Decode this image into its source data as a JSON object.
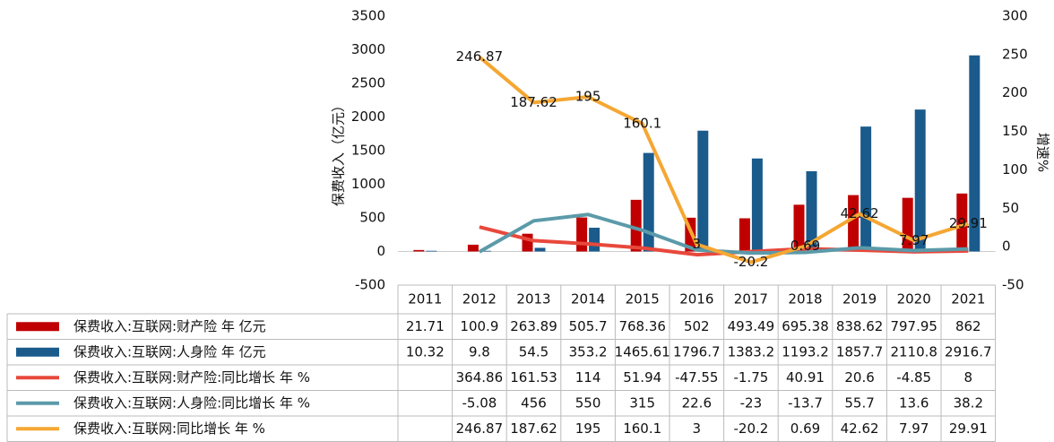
{
  "chart_data": {
    "type": "bar-line",
    "y_label": "保费收入（亿元）",
    "y2_label": "增速%",
    "categories": [
      "2011",
      "2012",
      "2013",
      "2014",
      "2015",
      "2016",
      "2017",
      "2018",
      "2019",
      "2020",
      "2021"
    ],
    "ylim": [
      -500,
      3500
    ],
    "yticks": [
      -500,
      0,
      500,
      1000,
      1500,
      2000,
      2500,
      3000,
      3500
    ],
    "y2lim": [
      -50,
      300
    ],
    "y2ticks": [
      -50,
      0,
      50,
      100,
      150,
      200,
      250,
      300
    ],
    "series": [
      {
        "name": "保费收入:互联网:财产险 年 亿元",
        "kind": "bar",
        "color": "#c00000",
        "values": [
          21.71,
          100.9,
          263.89,
          505.7,
          768.36,
          502,
          493.49,
          695.38,
          838.62,
          797.95,
          862
        ]
      },
      {
        "name": "保费收入:互联网:人身险 年 亿元",
        "kind": "bar",
        "color": "#1a5b8c",
        "values": [
          10.32,
          9.8,
          54.5,
          353.2,
          1465.61,
          1796.7,
          1383.2,
          1193.2,
          1857.7,
          2110.8,
          2916.7
        ]
      },
      {
        "name": "保费收入:互联网:财产险:同比增长 年 %",
        "kind": "line",
        "color": "#e8483c",
        "values": [
          null,
          364.86,
          161.53,
          114,
          51.94,
          -47.55,
          -1.75,
          40.91,
          20.6,
          -4.85,
          8
        ]
      },
      {
        "name": "保费收入:互联网:人身险:同比增长 年 %",
        "kind": "line",
        "color": "#5b9aa9",
        "values": [
          null,
          -5.08,
          456,
          550,
          315,
          22.6,
          -23,
          -13.7,
          55.7,
          13.6,
          38.2
        ]
      },
      {
        "name": "保费收入:互联网:同比增长 年 %",
        "kind": "line",
        "color": "#f5a733",
        "axis": "y2",
        "labels": true,
        "values": [
          null,
          246.87,
          187.62,
          195,
          160.1,
          3,
          -20.2,
          0.69,
          42.62,
          7.97,
          29.91
        ]
      }
    ]
  }
}
